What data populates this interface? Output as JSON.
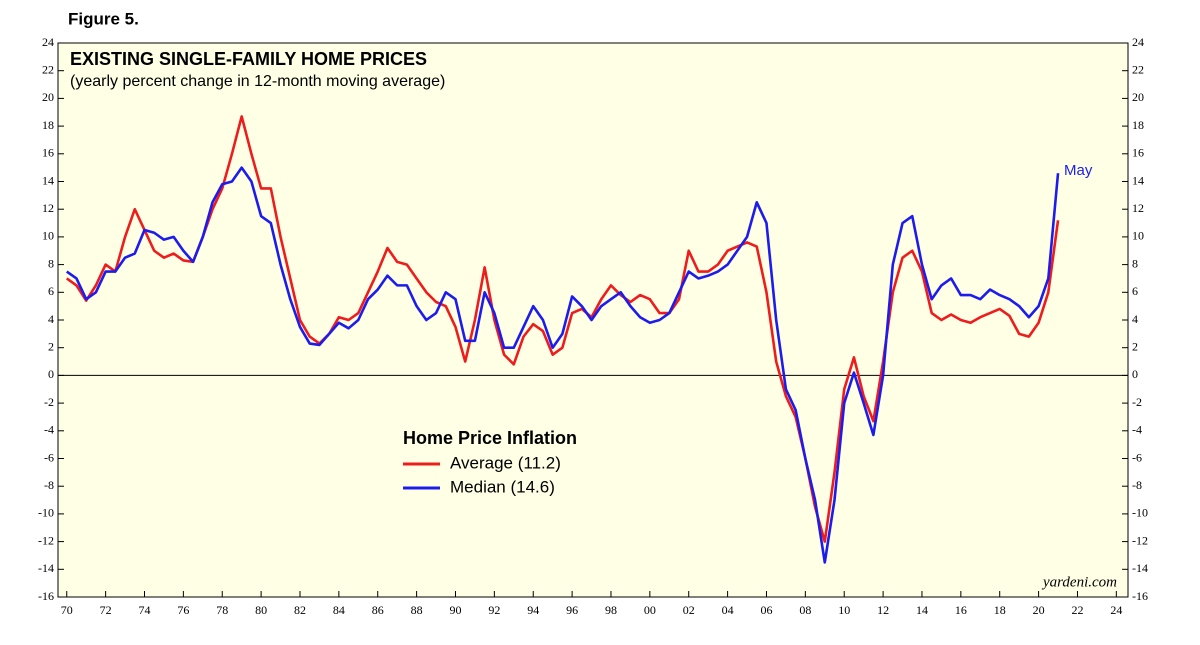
{
  "chart_data": {
    "type": "line",
    "figure_label": "Figure 5.",
    "title": "EXISTING SINGLE-FAMILY HOME PRICES",
    "subtitle": "(yearly percent change in 12-month moving average)",
    "legend_title": "Home Price Inflation",
    "annotation": "May",
    "source": "yardeni.com",
    "x": [
      1970,
      1970.5,
      1971,
      1971.5,
      1972,
      1972.5,
      1973,
      1973.5,
      1974,
      1974.5,
      1975,
      1975.5,
      1976,
      1976.5,
      1977,
      1977.5,
      1978,
      1978.5,
      1979,
      1979.5,
      1980,
      1980.5,
      1981,
      1981.5,
      1982,
      1982.5,
      1983,
      1983.5,
      1984,
      1984.5,
      1985,
      1985.5,
      1986,
      1986.5,
      1987,
      1987.5,
      1988,
      1988.5,
      1989,
      1989.5,
      1990,
      1990.5,
      1991,
      1991.5,
      1992,
      1992.5,
      1993,
      1993.5,
      1994,
      1994.5,
      1995,
      1995.5,
      1996,
      1996.5,
      1997,
      1997.5,
      1998,
      1998.5,
      1999,
      1999.5,
      2000,
      2000.5,
      2001,
      2001.5,
      2002,
      2002.5,
      2003,
      2003.5,
      2004,
      2004.5,
      2005,
      2005.5,
      2006,
      2006.5,
      2007,
      2007.5,
      2008,
      2008.5,
      2009,
      2009.5,
      2010,
      2010.5,
      2011,
      2011.5,
      2012,
      2012.5,
      2013,
      2013.5,
      2014,
      2014.5,
      2015,
      2015.5,
      2016,
      2016.5,
      2017,
      2017.5,
      2018,
      2018.5,
      2019,
      2019.5,
      2020,
      2020.5,
      2021
    ],
    "series": [
      {
        "name": "Average (11.2)",
        "color": "#ee1c1c",
        "values": [
          7,
          6.5,
          5.4,
          6.5,
          8,
          7.5,
          10,
          12,
          10.5,
          9,
          8.5,
          8.8,
          8.3,
          8.2,
          10,
          12,
          13.5,
          16,
          18.7,
          16,
          13.5,
          13.5,
          10,
          7,
          4,
          2.8,
          2.3,
          3,
          4.2,
          4,
          4.5,
          6,
          7.5,
          9.2,
          8.2,
          8,
          7,
          6,
          5.3,
          5,
          3.5,
          1,
          4,
          7.8,
          4,
          1.5,
          0.8,
          2.8,
          3.7,
          3.2,
          1.5,
          2,
          4.5,
          4.8,
          4.2,
          5.5,
          6.5,
          5.8,
          5.3,
          5.8,
          5.5,
          4.5,
          4.5,
          5.5,
          9,
          7.5,
          7.5,
          8,
          9,
          9.3,
          9.6,
          9.3,
          6,
          1,
          -1.5,
          -3,
          -6,
          -9.5,
          -12,
          -7,
          -1,
          1.3,
          -1.5,
          -3.3,
          1,
          6,
          8.5,
          9,
          7.5,
          4.5,
          4,
          4.4,
          4,
          3.8,
          4.2,
          4.5,
          4.8,
          4.3,
          3,
          2.8,
          3.8,
          6,
          11.2
        ]
      },
      {
        "name": "Median (14.6)",
        "color": "#1c1cee",
        "values": [
          7.5,
          7,
          5.5,
          6,
          7.5,
          7.5,
          8.5,
          8.8,
          10.5,
          10.3,
          9.8,
          10,
          9,
          8.2,
          10,
          12.5,
          13.8,
          14,
          15,
          14,
          11.5,
          11,
          8,
          5.5,
          3.5,
          2.3,
          2.2,
          3,
          3.8,
          3.4,
          4,
          5.5,
          6.2,
          7.2,
          6.5,
          6.5,
          5,
          4,
          4.5,
          6,
          5.5,
          2.5,
          2.5,
          6,
          4.5,
          2,
          2,
          3.5,
          5,
          4,
          2,
          3,
          5.7,
          5,
          4,
          5,
          5.5,
          6,
          5,
          4.2,
          3.8,
          4,
          4.5,
          6,
          7.5,
          7,
          7.2,
          7.5,
          8,
          9,
          10,
          12.5,
          11,
          4,
          -1,
          -2.5,
          -6,
          -9,
          -13.5,
          -9,
          -2,
          0.2,
          -2,
          -4.3,
          0,
          8,
          11,
          11.5,
          8,
          5.5,
          6.5,
          7,
          5.8,
          5.8,
          5.5,
          6.2,
          5.8,
          5.5,
          5,
          4.2,
          5,
          7,
          14.6
        ]
      }
    ],
    "xlim": [
      1969.55,
      2024.6
    ],
    "ylim": [
      -16,
      24
    ],
    "yticks": [
      -16,
      -14,
      -12,
      -10,
      -8,
      -6,
      -4,
      -2,
      0,
      2,
      4,
      6,
      8,
      10,
      12,
      14,
      16,
      18,
      20,
      22,
      24
    ],
    "xticks": [
      {
        "value": 1970,
        "label": "70"
      },
      {
        "value": 1972,
        "label": "72"
      },
      {
        "value": 1974,
        "label": "74"
      },
      {
        "value": 1976,
        "label": "76"
      },
      {
        "value": 1978,
        "label": "78"
      },
      {
        "value": 1980,
        "label": "80"
      },
      {
        "value": 1982,
        "label": "82"
      },
      {
        "value": 1984,
        "label": "84"
      },
      {
        "value": 1986,
        "label": "86"
      },
      {
        "value": 1988,
        "label": "88"
      },
      {
        "value": 1990,
        "label": "90"
      },
      {
        "value": 1992,
        "label": "92"
      },
      {
        "value": 1994,
        "label": "94"
      },
      {
        "value": 1996,
        "label": "96"
      },
      {
        "value": 1998,
        "label": "98"
      },
      {
        "value": 2000,
        "label": "00"
      },
      {
        "value": 2002,
        "label": "02"
      },
      {
        "value": 2004,
        "label": "04"
      },
      {
        "value": 2006,
        "label": "06"
      },
      {
        "value": 2008,
        "label": "08"
      },
      {
        "value": 2010,
        "label": "10"
      },
      {
        "value": 2012,
        "label": "12"
      },
      {
        "value": 2014,
        "label": "14"
      },
      {
        "value": 2016,
        "label": "16"
      },
      {
        "value": 2018,
        "label": "18"
      },
      {
        "value": 2020,
        "label": "20"
      },
      {
        "value": 2022,
        "label": "22"
      },
      {
        "value": 2024,
        "label": "24"
      }
    ],
    "zero_line": true
  }
}
